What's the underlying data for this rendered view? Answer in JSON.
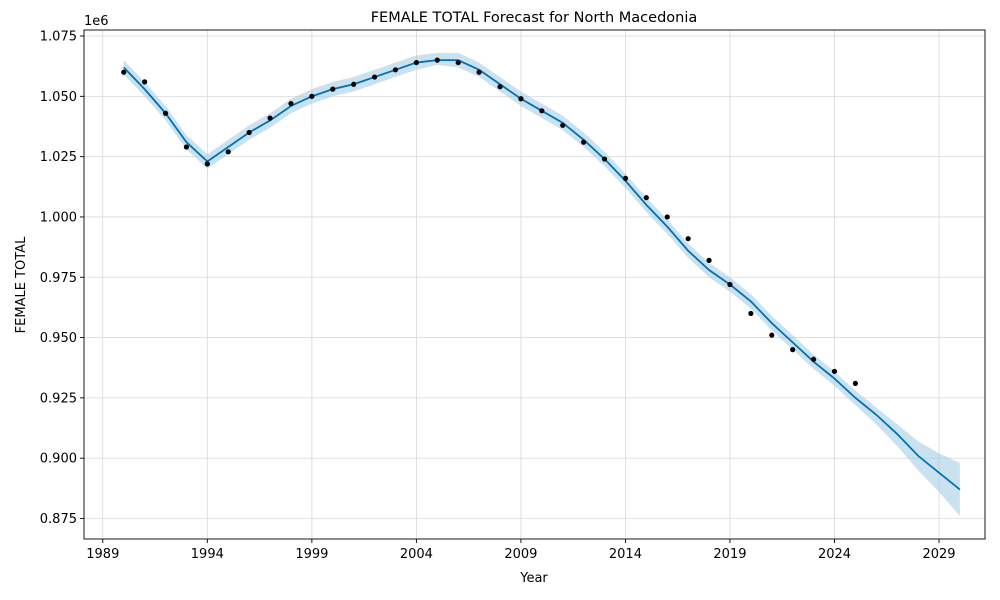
{
  "chart_data": {
    "type": "line",
    "title": "FEMALE TOTAL Forecast for North Macedonia",
    "xlabel": "Year",
    "ylabel": "FEMALE TOTAL",
    "y_offset_label": "1e6",
    "xlim": [
      1988.1,
      2031.2
    ],
    "ylim": [
      0.8665,
      1.0775
    ],
    "x_ticks": [
      1989,
      1994,
      1999,
      2004,
      2009,
      2014,
      2019,
      2024,
      2029
    ],
    "y_ticks": [
      0.875,
      0.9,
      0.925,
      0.95,
      0.975,
      1.0,
      1.025,
      1.05,
      1.075
    ],
    "y_tick_labels": [
      "0.875",
      "0.900",
      "0.925",
      "0.950",
      "0.975",
      "1.000",
      "1.025",
      "1.050",
      "1.075"
    ],
    "grid": true,
    "colors": {
      "forecast": "#0072B2",
      "band": "#9ecae1",
      "observed": "#000000",
      "grid": "#d9d9d9"
    },
    "series": [
      {
        "role": "observed",
        "style": "points",
        "x": [
          1990,
          1991,
          1992,
          1993,
          1994,
          1995,
          1996,
          1997,
          1998,
          1999,
          2000,
          2001,
          2002,
          2003,
          2004,
          2005,
          2006,
          2007,
          2008,
          2009,
          2010,
          2011,
          2012,
          2013,
          2014,
          2015,
          2016,
          2017,
          2018,
          2019,
          2020,
          2021,
          2022,
          2023,
          2024,
          2025
        ],
        "values": [
          1.06,
          1.056,
          1.043,
          1.029,
          1.022,
          1.027,
          1.035,
          1.041,
          1.047,
          1.05,
          1.053,
          1.055,
          1.058,
          1.061,
          1.064,
          1.065,
          1.064,
          1.06,
          1.054,
          1.049,
          1.044,
          1.038,
          1.031,
          1.024,
          1.016,
          1.008,
          1.0,
          0.991,
          0.982,
          0.972,
          0.96,
          0.951,
          0.945,
          0.941,
          0.936,
          0.931
        ]
      },
      {
        "role": "forecast",
        "style": "line",
        "x": [
          1990,
          1991,
          1992,
          1993,
          1994,
          1995,
          1996,
          1997,
          1998,
          1999,
          2000,
          2001,
          2002,
          2003,
          2004,
          2005,
          2006,
          2007,
          2008,
          2009,
          2010,
          2011,
          2012,
          2013,
          2014,
          2015,
          2016,
          2017,
          2018,
          2019,
          2020,
          2021,
          2022,
          2023,
          2024,
          2025,
          2026,
          2027,
          2028,
          2029,
          2030
        ],
        "values": [
          1.062,
          1.053,
          1.043,
          1.031,
          1.023,
          1.029,
          1.035,
          1.04,
          1.046,
          1.05,
          1.053,
          1.055,
          1.058,
          1.061,
          1.064,
          1.065,
          1.065,
          1.061,
          1.055,
          1.049,
          1.044,
          1.039,
          1.032,
          1.024,
          1.015,
          1.005,
          0.996,
          0.986,
          0.978,
          0.972,
          0.965,
          0.956,
          0.948,
          0.94,
          0.933,
          0.925,
          0.918,
          0.91,
          0.901,
          0.894,
          0.887
        ],
        "lower": [
          1.059,
          1.05,
          1.04,
          1.028,
          1.02,
          1.026,
          1.032,
          1.037,
          1.043,
          1.047,
          1.05,
          1.052,
          1.055,
          1.058,
          1.061,
          1.063,
          1.062,
          1.058,
          1.052,
          1.046,
          1.041,
          1.036,
          1.029,
          1.021,
          1.012,
          1.002,
          0.993,
          0.983,
          0.975,
          0.969,
          0.962,
          0.953,
          0.945,
          0.937,
          0.93,
          0.922,
          0.914,
          0.905,
          0.895,
          0.886,
          0.876
        ],
        "upper": [
          1.065,
          1.056,
          1.046,
          1.034,
          1.026,
          1.032,
          1.038,
          1.043,
          1.049,
          1.053,
          1.056,
          1.058,
          1.061,
          1.064,
          1.067,
          1.068,
          1.068,
          1.064,
          1.058,
          1.052,
          1.047,
          1.042,
          1.035,
          1.027,
          1.018,
          1.008,
          0.999,
          0.989,
          0.981,
          0.975,
          0.968,
          0.959,
          0.951,
          0.943,
          0.936,
          0.928,
          0.921,
          0.914,
          0.907,
          0.902,
          0.898
        ]
      }
    ]
  }
}
